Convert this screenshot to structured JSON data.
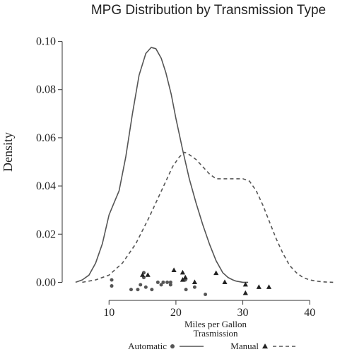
{
  "chart_data": {
    "type": "line",
    "title": "MPG Distribution by Transmission Type",
    "xlabel": "Miles per Gallon",
    "ylabel": "Density",
    "xlim": [
      3.0,
      46.0
    ],
    "ylim": [
      -0.0075,
      0.1075
    ],
    "x_ticks": [
      10,
      20,
      30,
      40
    ],
    "y_ticks": [
      0.0,
      0.02,
      0.04,
      0.06,
      0.08,
      0.1
    ],
    "y_tick_labels": [
      "0.00",
      "0.02",
      "0.04",
      "0.06",
      "0.08",
      "0.10"
    ],
    "grid": false,
    "legend": {
      "title": "Trasmission",
      "position": "bottom"
    },
    "series": [
      {
        "name": "Automatic",
        "marker": "circle",
        "line_style": "solid",
        "color": "#555555",
        "density_x": [
          5.0,
          6.0,
          7.0,
          8.0,
          9.0,
          10.0,
          10.6,
          11.5,
          12.5,
          13.5,
          14.5,
          15.5,
          16.3,
          17.0,
          17.8,
          18.5,
          19.3,
          20.0,
          21.0,
          22.0,
          23.0,
          24.0,
          25.0,
          26.0,
          27.0,
          27.8,
          28.5,
          29.0,
          30.0,
          30.8
        ],
        "density_y": [
          0.0,
          0.001,
          0.003,
          0.008,
          0.016,
          0.028,
          0.032,
          0.038,
          0.052,
          0.07,
          0.086,
          0.095,
          0.0975,
          0.097,
          0.093,
          0.087,
          0.078,
          0.068,
          0.055,
          0.043,
          0.033,
          0.024,
          0.016,
          0.009,
          0.004,
          0.002,
          0.001,
          0.0005,
          0.0,
          0.0
        ],
        "rug_x": [
          10.4,
          10.4,
          13.3,
          14.3,
          14.7,
          15.2,
          15.2,
          15.5,
          16.4,
          17.3,
          17.8,
          18.1,
          18.7,
          19.2,
          19.2,
          21.4,
          21.5,
          22.8,
          24.4
        ],
        "rug_y": [
          -0.0015,
          0.001,
          -0.003,
          -0.003,
          -0.001,
          0.004,
          0.002,
          -0.002,
          -0.003,
          0.0,
          -0.001,
          0.0,
          0.0,
          -0.001,
          0.0,
          0.001,
          -0.003,
          -0.002,
          -0.005
        ]
      },
      {
        "name": "Manual",
        "marker": "triangle",
        "line_style": "dashed",
        "color": "#555555",
        "density_x": [
          6.0,
          8.0,
          10.0,
          12.0,
          14.0,
          16.0,
          18.0,
          19.5,
          20.5,
          21.3,
          22.0,
          23.0,
          24.0,
          25.0,
          26.0,
          27.0,
          28.0,
          29.0,
          30.0,
          31.0,
          32.0,
          33.0,
          34.0,
          35.0,
          36.0,
          37.0,
          38.0,
          39.0,
          40.0,
          41.0,
          42.0,
          43.5
        ],
        "density_y": [
          0.0,
          0.001,
          0.003,
          0.008,
          0.016,
          0.027,
          0.039,
          0.048,
          0.052,
          0.054,
          0.053,
          0.051,
          0.048,
          0.045,
          0.043,
          0.043,
          0.043,
          0.043,
          0.043,
          0.042,
          0.038,
          0.032,
          0.025,
          0.018,
          0.012,
          0.007,
          0.004,
          0.002,
          0.001,
          0.0005,
          0.0002,
          0.0
        ],
        "rug_x": [
          15.0,
          15.8,
          19.7,
          21.0,
          21.0,
          21.4,
          22.8,
          26.0,
          27.3,
          30.4,
          30.4,
          32.4,
          33.9
        ],
        "rug_y": [
          0.003,
          0.003,
          0.005,
          0.004,
          0.001,
          0.002,
          0.0,
          0.0038,
          0.0,
          -0.001,
          -0.0045,
          -0.002,
          -0.002
        ]
      }
    ]
  }
}
